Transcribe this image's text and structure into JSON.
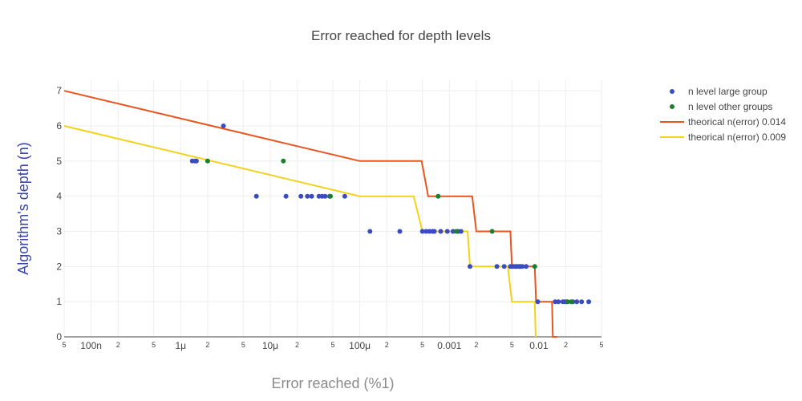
{
  "chart_data": {
    "type": "scatter",
    "title": "Error reached for depth levels",
    "xlabel": "Error reached (%1)",
    "ylabel": "Algorithm's depth (n)",
    "x_scale": "log",
    "xlim": [
      5e-08,
      0.05
    ],
    "ylim": [
      0,
      7.3
    ],
    "x_major_ticks": [
      {
        "value": 1e-07,
        "label": "100n"
      },
      {
        "value": 1e-06,
        "label": "1μ"
      },
      {
        "value": 1e-05,
        "label": "10μ"
      },
      {
        "value": 0.0001,
        "label": "100μ"
      },
      {
        "value": 0.001,
        "label": "0.001"
      },
      {
        "value": 0.01,
        "label": "0.01"
      }
    ],
    "x_minor_ticks": [
      {
        "value": 5e-08,
        "label": "5"
      },
      {
        "value": 2e-07,
        "label": "2"
      },
      {
        "value": 5e-07,
        "label": "5"
      },
      {
        "value": 2e-06,
        "label": "2"
      },
      {
        "value": 5e-06,
        "label": "5"
      },
      {
        "value": 2e-05,
        "label": "2"
      },
      {
        "value": 5e-05,
        "label": "5"
      },
      {
        "value": 0.0002,
        "label": "2"
      },
      {
        "value": 0.0005,
        "label": "5"
      },
      {
        "value": 0.002,
        "label": "2"
      },
      {
        "value": 0.005,
        "label": "5"
      },
      {
        "value": 0.02,
        "label": "2"
      },
      {
        "value": 0.05,
        "label": "5"
      }
    ],
    "y_ticks": [
      0,
      1,
      2,
      3,
      4,
      5,
      6,
      7
    ],
    "grid": true,
    "legend_position": "top-right",
    "series": [
      {
        "name": "n level large group",
        "kind": "markers",
        "color": "#3b4cc0",
        "points": [
          [
            3e-06,
            6
          ],
          [
            1.35e-06,
            5
          ],
          [
            1.45e-06,
            5
          ],
          [
            1.5e-06,
            5
          ],
          [
            7e-06,
            4
          ],
          [
            1.5e-05,
            4
          ],
          [
            2.2e-05,
            4
          ],
          [
            2.6e-05,
            4
          ],
          [
            2.9e-05,
            4
          ],
          [
            3.5e-05,
            4
          ],
          [
            3.8e-05,
            4
          ],
          [
            4.1e-05,
            4
          ],
          [
            4.6e-05,
            4
          ],
          [
            6.8e-05,
            4
          ],
          [
            0.00013,
            3
          ],
          [
            0.00028,
            3
          ],
          [
            0.0005,
            3
          ],
          [
            0.00055,
            3
          ],
          [
            0.0006,
            3
          ],
          [
            0.00065,
            3
          ],
          [
            0.00068,
            3
          ],
          [
            0.0008,
            3
          ],
          [
            0.00095,
            3
          ],
          [
            0.0011,
            3
          ],
          [
            0.00125,
            3
          ],
          [
            0.00135,
            3
          ],
          [
            0.0017,
            2
          ],
          [
            0.0034,
            2
          ],
          [
            0.0041,
            2
          ],
          [
            0.0048,
            2
          ],
          [
            0.0051,
            2
          ],
          [
            0.0054,
            2
          ],
          [
            0.0057,
            2
          ],
          [
            0.006,
            2
          ],
          [
            0.0062,
            2
          ],
          [
            0.0065,
            2
          ],
          [
            0.0072,
            2
          ],
          [
            0.0097,
            1
          ],
          [
            0.0152,
            1
          ],
          [
            0.0165,
            1
          ],
          [
            0.0185,
            1
          ],
          [
            0.0195,
            1
          ],
          [
            0.0205,
            1
          ],
          [
            0.024,
            1
          ],
          [
            0.0265,
            1
          ],
          [
            0.03,
            1
          ],
          [
            0.036,
            1
          ]
        ]
      },
      {
        "name": "n level other groups",
        "kind": "markers",
        "color": "#1a7f2e",
        "points": [
          [
            2e-06,
            5
          ],
          [
            1.4e-05,
            5
          ],
          [
            4.7e-05,
            4
          ],
          [
            0.00075,
            4
          ],
          [
            0.0012,
            3
          ],
          [
            0.003,
            3
          ],
          [
            0.009,
            2
          ],
          [
            0.021,
            1
          ],
          [
            0.023,
            1
          ]
        ]
      },
      {
        "name": "theorical n(error) 0.014",
        "kind": "line",
        "color": "#e8551f",
        "points": [
          [
            5e-08,
            7
          ],
          [
            0.0001,
            5
          ],
          [
            0.00049,
            5
          ],
          [
            0.00058,
            4
          ],
          [
            0.0018,
            4
          ],
          [
            0.002,
            3
          ],
          [
            0.0048,
            3
          ],
          [
            0.005,
            2
          ],
          [
            0.009,
            2
          ],
          [
            0.0093,
            1
          ],
          [
            0.014,
            1
          ],
          [
            0.0143,
            0
          ],
          [
            0.016,
            0
          ]
        ]
      },
      {
        "name": "theorical n(error) 0.009",
        "kind": "line",
        "color": "#f2d21b",
        "points": [
          [
            5e-08,
            6
          ],
          [
            0.0001,
            4
          ],
          [
            0.0004,
            4
          ],
          [
            0.0005,
            3
          ],
          [
            0.0016,
            3
          ],
          [
            0.0017,
            2
          ],
          [
            0.0045,
            2
          ],
          [
            0.005,
            1
          ],
          [
            0.009,
            1
          ],
          [
            0.0092,
            0
          ]
        ]
      }
    ]
  }
}
